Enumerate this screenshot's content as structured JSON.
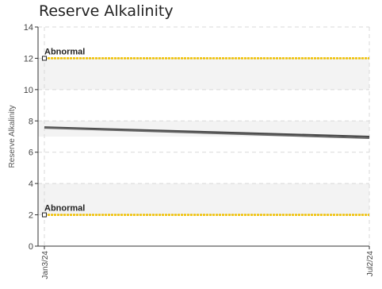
{
  "chart_data": {
    "type": "line",
    "title": "Reserve Alkalinity",
    "xlabel": "",
    "ylabel": "Reserve Alkalinity",
    "ylim": [
      0,
      14
    ],
    "y_ticks": [
      0,
      2,
      4,
      6,
      8,
      10,
      12,
      14
    ],
    "x_ticks": [
      "Jan3/24",
      "Jul2/24"
    ],
    "grid": true,
    "bands": [
      {
        "from": 10,
        "to": 12,
        "color": "#f3f3f3"
      },
      {
        "from": 7,
        "to": 8,
        "color": "#f3f3f3"
      },
      {
        "from": 2,
        "to": 4,
        "color": "#f3f3f3"
      }
    ],
    "reference_lines": [
      {
        "label": "Abnormal",
        "value": 12,
        "color": "#f0c000"
      },
      {
        "label": "Abnormal",
        "value": 2,
        "color": "#f0c000"
      }
    ],
    "series": [
      {
        "x": [
          "Jan3/24",
          "Jul2/24"
        ],
        "values": [
          7.6,
          7.0
        ],
        "color": "#444444"
      },
      {
        "x": [
          "Jan3/24",
          "Jul2/24"
        ],
        "values": [
          7.55,
          6.9
        ],
        "color": "#666666"
      }
    ]
  }
}
